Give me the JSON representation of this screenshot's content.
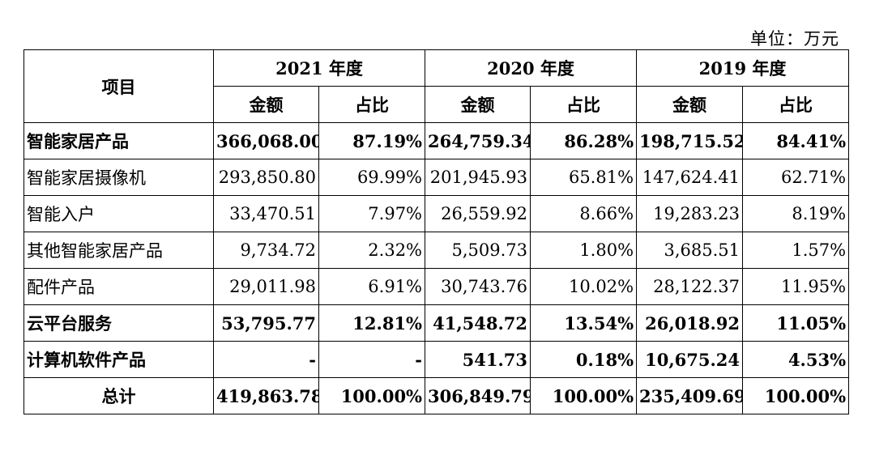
{
  "unit_label": "单位：万元",
  "header": {
    "item": "项目",
    "years": [
      "2021 年度",
      "2020 年度",
      "2019 年度"
    ],
    "amount": "金额",
    "ratio": "占比"
  },
  "rows": [
    {
      "label": "智能家居产品",
      "bold": true,
      "cells": [
        "366,068.00",
        "87.19%",
        "264,759.34",
        "86.28%",
        "198,715.52",
        "84.41%"
      ]
    },
    {
      "label": "智能家居摄像机",
      "bold": false,
      "cells": [
        "293,850.80",
        "69.99%",
        "201,945.93",
        "65.81%",
        "147,624.41",
        "62.71%"
      ]
    },
    {
      "label": "智能入户",
      "bold": false,
      "cells": [
        "33,470.51",
        "7.97%",
        "26,559.92",
        "8.66%",
        "19,283.23",
        "8.19%"
      ]
    },
    {
      "label": "其他智能家居产品",
      "bold": false,
      "cells": [
        "9,734.72",
        "2.32%",
        "5,509.73",
        "1.80%",
        "3,685.51",
        "1.57%"
      ]
    },
    {
      "label": "配件产品",
      "bold": false,
      "cells": [
        "29,011.98",
        "6.91%",
        "30,743.76",
        "10.02%",
        "28,122.37",
        "11.95%"
      ]
    },
    {
      "label": "云平台服务",
      "bold": true,
      "cells": [
        "53,795.77",
        "12.81%",
        "41,548.72",
        "13.54%",
        "26,018.92",
        "11.05%"
      ]
    },
    {
      "label": "计算机软件产品",
      "bold": true,
      "cells": [
        "-",
        "-",
        "541.73",
        "0.18%",
        "10,675.24",
        "4.53%"
      ]
    },
    {
      "label": "总计",
      "bold": true,
      "center": true,
      "cells": [
        "419,863.78",
        "100.00%",
        "306,849.79",
        "100.00%",
        "235,409.69",
        "100.00%"
      ]
    }
  ]
}
